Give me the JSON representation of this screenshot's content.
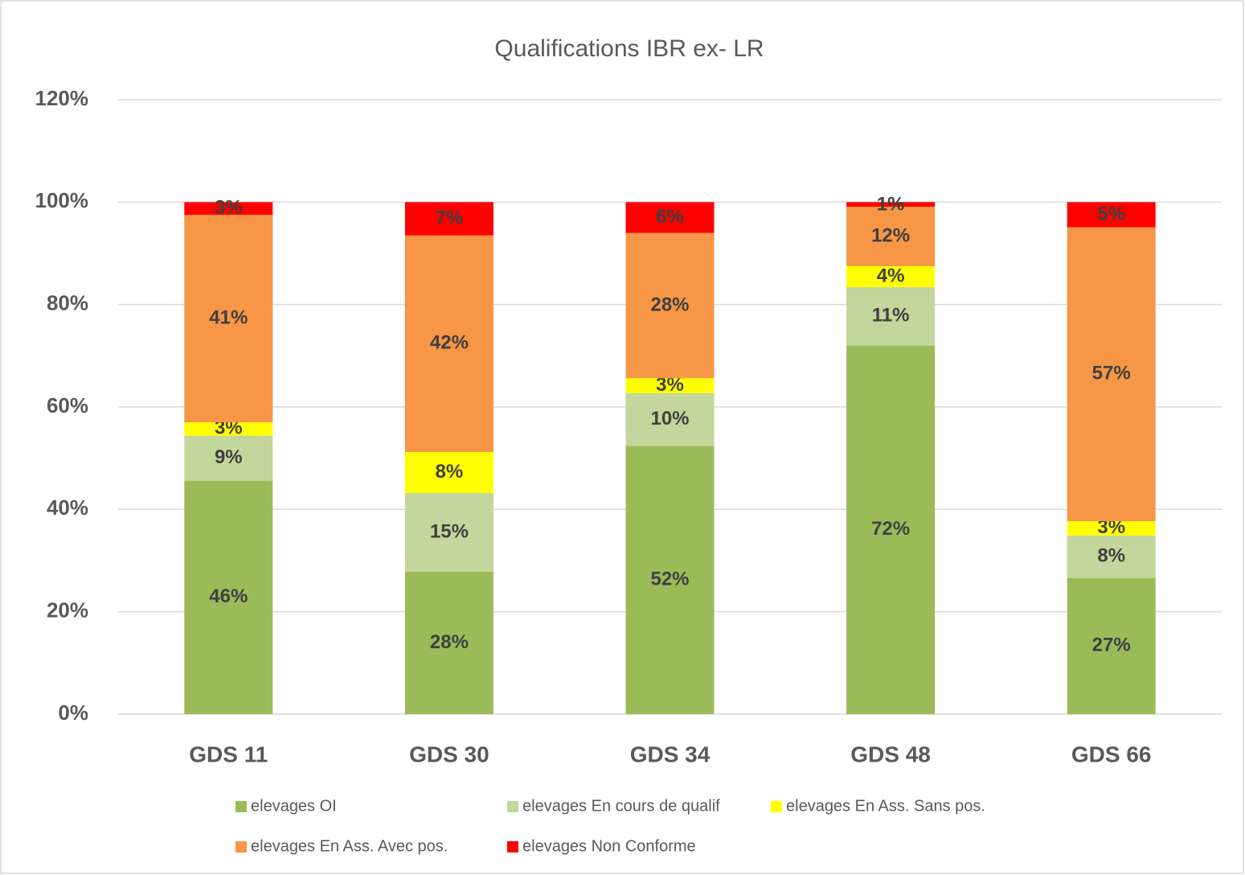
{
  "chart_data": {
    "type": "stacked_bar",
    "title": "Qualifications IBR ex- LR",
    "categories": [
      "GDS 11",
      "GDS 30",
      "GDS 34",
      "GDS 48",
      "GDS 66"
    ],
    "series": [
      {
        "name": "elevages OI",
        "color": "#9bbb59",
        "values": [
          45.6,
          27.8,
          52.4,
          72.0,
          26.6
        ],
        "value_labels": [
          "46%",
          "28%",
          "52%",
          "72%",
          "27%"
        ]
      },
      {
        "name": "elevages En cours de qualif",
        "color": "#c3d69b",
        "values": [
          8.8,
          15.4,
          10.3,
          11.4,
          8.3
        ],
        "value_labels": [
          "9%",
          "15%",
          "10%",
          "11%",
          "8%"
        ]
      },
      {
        "name": "elevages En Ass. Sans pos.",
        "color": "#ffff00",
        "values": [
          2.6,
          8.0,
          2.9,
          4.1,
          2.8
        ],
        "value_labels": [
          "3%",
          "8%",
          "3%",
          "4%",
          "3%"
        ]
      },
      {
        "name": "elevages En Ass. Avec pos.",
        "color": "#f79646",
        "values": [
          40.5,
          42.3,
          28.4,
          11.6,
          57.4
        ],
        "value_labels": [
          "41%",
          "42%",
          "28%",
          "12%",
          "57%"
        ]
      },
      {
        "name": "elevages Non Conforme",
        "color": "#ff0000",
        "values": [
          2.5,
          6.5,
          6.0,
          0.9,
          4.9
        ],
        "value_labels": [
          "3%",
          "7%",
          "6%",
          "1%",
          "5%"
        ]
      }
    ],
    "ylim": [
      0,
      120
    ],
    "yticks": [
      {
        "value": 0,
        "label": "0%"
      },
      {
        "value": 20,
        "label": "20%"
      },
      {
        "value": 40,
        "label": "40%"
      },
      {
        "value": 60,
        "label": "60%"
      },
      {
        "value": 80,
        "label": "80%"
      },
      {
        "value": 100,
        "label": "100%"
      },
      {
        "value": 120,
        "label": "120%"
      }
    ],
    "grid": true,
    "legend": "bottom"
  }
}
